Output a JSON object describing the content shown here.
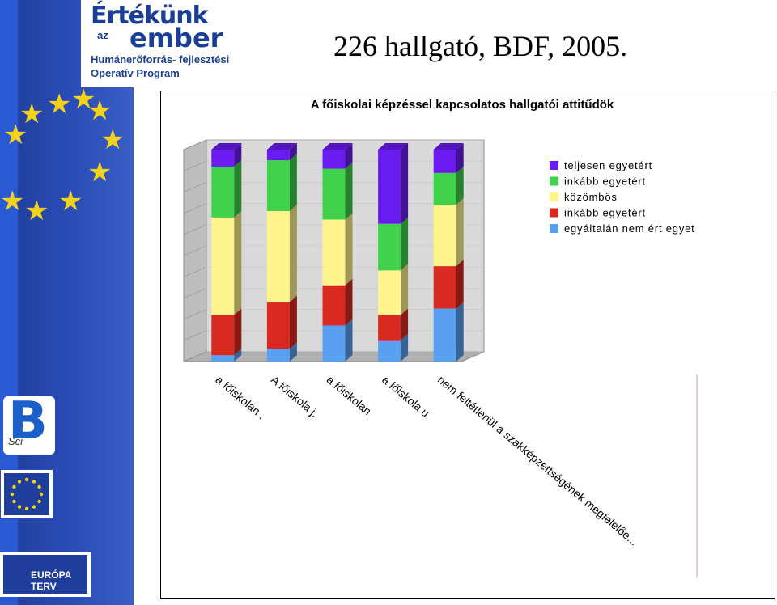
{
  "slide": {
    "title": "226 hallgató, BDF, 2005."
  },
  "branding": {
    "logo_line1": "Értékünk",
    "logo_line2": "az",
    "logo_line3": "ember",
    "logo_line4": "Humánerőforrás- fejlesztési",
    "logo_line5": "Operatív Program",
    "bsci_letter": "B",
    "bsci_sub": "Sci",
    "europa_text": "EURÓPA TERV"
  },
  "colors": {
    "teljesen": "#6a1cf0",
    "inkabb_egyet": "#3fd24a",
    "kozombos": "#fff38c",
    "inkabb_nem": "#d92a22",
    "egyaltalan": "#5aa0f0"
  },
  "chart_data": {
    "type": "bar",
    "stacked": true,
    "title": "A főiskolai képzéssel kapcsolatos hallgatói attitűdök",
    "categories": [
      "a főiskolán .",
      "A főiskola j.",
      "a főiskolán",
      "a főiskola u.",
      "nem feltétlenül a szakképzettségének megfelelőe..."
    ],
    "ylim": [
      0,
      100
    ],
    "legend_position": "right",
    "series": [
      {
        "name": "egyáltalán nem ért egyet",
        "values": [
          3,
          6,
          17,
          10,
          25
        ]
      },
      {
        "name": "inkább egyetért",
        "values": [
          19,
          22,
          19,
          12,
          20
        ]
      },
      {
        "name": "közömbös",
        "values": [
          46,
          43,
          31,
          21,
          29
        ]
      },
      {
        "name": "inkább egyetért",
        "values": [
          24,
          24,
          24,
          22,
          15
        ]
      },
      {
        "name": "teljesen egyetért",
        "values": [
          8,
          5,
          9,
          35,
          11
        ]
      }
    ],
    "legend_order": [
      "teljesen egyetért",
      "inkább egyetért",
      "közömbös",
      "inkább egyetért",
      "egyáltalán nem ért egyet"
    ],
    "legend_colors": [
      "#6a1cf0",
      "#3fd24a",
      "#fff38c",
      "#d92a22",
      "#5aa0f0"
    ],
    "series_colors": [
      "#5aa0f0",
      "#d92a22",
      "#fff38c",
      "#3fd24a",
      "#6a1cf0"
    ]
  }
}
